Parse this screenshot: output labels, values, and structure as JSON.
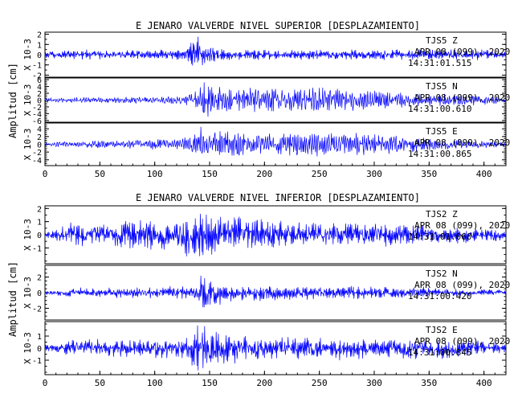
{
  "figure": {
    "panel_groups": [
      {
        "title": "E JENARO VALVERDE NIVEL SUPERIOR [DESPLAZAMIENTO]",
        "ylabel": "Amplitud [cm]",
        "xticks": [
          "0",
          "50",
          "100",
          "150",
          "200",
          "250",
          "300",
          "350",
          "400"
        ]
      },
      {
        "title": "E JENARO VALVERDE NIVEL INFERIOR [DESPLAZAMIENTO]",
        "ylabel": "Amplitud [cm]",
        "xticks": [
          "0",
          "50",
          "100",
          "150",
          "200",
          "250",
          "300",
          "350",
          "400"
        ]
      }
    ]
  },
  "chart_data": [
    {
      "type": "line",
      "title": "E JENARO VALVERDE NIVEL SUPERIOR [DESPLAZAMIENTO]",
      "xlabel": "",
      "ylabel": "Amplitud [cm]",
      "xlim": [
        0,
        420
      ],
      "line_color": "#0000ff",
      "grid": false,
      "channels": [
        {
          "station": "TJS5",
          "component": "Z",
          "date": "APR 08 (099), 2020",
          "time": "14:31:01.515",
          "scale": "X 10-3",
          "ylim": [
            -2.2,
            2.2
          ],
          "yticks": [
            "2",
            "1",
            "0",
            "-1",
            "-2"
          ],
          "envelope": {
            "t": [
              0,
              20,
              40,
              60,
              100,
              128,
              135,
              140,
              148,
              160,
              200,
              260,
              300,
              340,
              380,
              400,
              420
            ],
            "amp": [
              0.35,
              0.5,
              0.5,
              0.45,
              0.45,
              0.7,
              1.9,
              2.2,
              1.0,
              0.6,
              0.5,
              0.5,
              0.55,
              0.55,
              0.5,
              0.6,
              0.3
            ]
          }
        },
        {
          "station": "TJS5",
          "component": "N",
          "date": "APR 08 (099), 2020",
          "time": "14:31:00.610",
          "scale": "X 10-3",
          "ylim": [
            -6.5,
            6.5
          ],
          "yticks": [
            "6",
            "4",
            "2",
            "0",
            "-2",
            "-4",
            "-6"
          ],
          "envelope": {
            "t": [
              0,
              20,
              60,
              100,
              128,
              138,
              142,
              150,
              170,
              200,
              240,
              270,
              300,
              340,
              380,
              400,
              420
            ],
            "amp": [
              0.6,
              0.8,
              0.9,
              0.9,
              1.5,
              3.0,
              6.0,
              4.8,
              3.8,
              3.5,
              3.9,
              3.6,
              3.0,
              2.2,
              1.8,
              1.5,
              1.0
            ]
          }
        },
        {
          "station": "TJS5",
          "component": "E",
          "date": "APR 08 (099), 2020",
          "time": "14:31:00.865",
          "scale": "X 10-3",
          "ylim": [
            -5.5,
            5.5
          ],
          "yticks": [
            "4",
            "2",
            "0",
            "-2",
            "-4"
          ],
          "envelope": {
            "t": [
              0,
              20,
              60,
              100,
              130,
              138,
              142,
              150,
              170,
              200,
              250,
              300,
              340,
              370,
              400,
              420
            ],
            "amp": [
              0.5,
              0.8,
              1.0,
              1.4,
              1.9,
              3.5,
              5.3,
              4.3,
              3.3,
              2.7,
              3.4,
              2.9,
              2.0,
              1.3,
              1.0,
              0.8
            ]
          }
        }
      ]
    },
    {
      "type": "line",
      "title": "E JENARO VALVERDE NIVEL INFERIOR [DESPLAZAMIENTO]",
      "xlabel": "",
      "ylabel": "Amplitud [cm]",
      "xlim": [
        0,
        420
      ],
      "line_color": "#0000ff",
      "grid": false,
      "channels": [
        {
          "station": "TJS2",
          "component": "Z",
          "date": "APR 08 (099), 2020",
          "time": "14:31:01.060",
          "scale": "X 10-3",
          "ylim": [
            -2.2,
            2.2
          ],
          "yticks": [
            "2",
            "1",
            "0",
            "-1"
          ],
          "envelope": {
            "t": [
              0,
              20,
              60,
              90,
              120,
              135,
              142,
              150,
              170,
              200,
              240,
              300,
              340,
              380,
              420
            ],
            "amp": [
              0.2,
              0.9,
              0.9,
              1.2,
              1.2,
              1.6,
              2.0,
              1.8,
              1.6,
              1.2,
              1.0,
              0.9,
              0.8,
              0.6,
              0.4
            ]
          }
        },
        {
          "station": "TJS2",
          "component": "N",
          "date": "APR 08 (099), 2020",
          "time": "14:31:00.420",
          "scale": "X 10-3",
          "ylim": [
            -3.5,
            3.5
          ],
          "yticks": [
            "2",
            "0",
            "-2"
          ],
          "envelope": {
            "t": [
              0,
              20,
              80,
              120,
              135,
              140,
              146,
              155,
              170,
              200,
              260,
              300,
              360,
              420
            ],
            "amp": [
              0.3,
              0.5,
              0.7,
              0.8,
              1.2,
              3.3,
              2.2,
              1.5,
              1.0,
              0.9,
              0.9,
              0.8,
              0.6,
              0.3
            ]
          }
        },
        {
          "station": "TJS2",
          "component": "E",
          "date": "APR 08 (099), 2020",
          "time": "14:31:00.845",
          "scale": "X 10-3",
          "ylim": [
            -2.2,
            2.2
          ],
          "yticks": [
            "1",
            "0",
            "-1"
          ],
          "envelope": {
            "t": [
              0,
              20,
              60,
              100,
              130,
              138,
              144,
              155,
              170,
              200,
              260,
              300,
              360,
              400,
              420
            ],
            "amp": [
              0.3,
              0.6,
              0.8,
              0.8,
              1.0,
              1.9,
              2.2,
              1.7,
              1.2,
              1.0,
              0.9,
              0.9,
              0.8,
              0.6,
              0.4
            ]
          }
        }
      ]
    }
  ]
}
